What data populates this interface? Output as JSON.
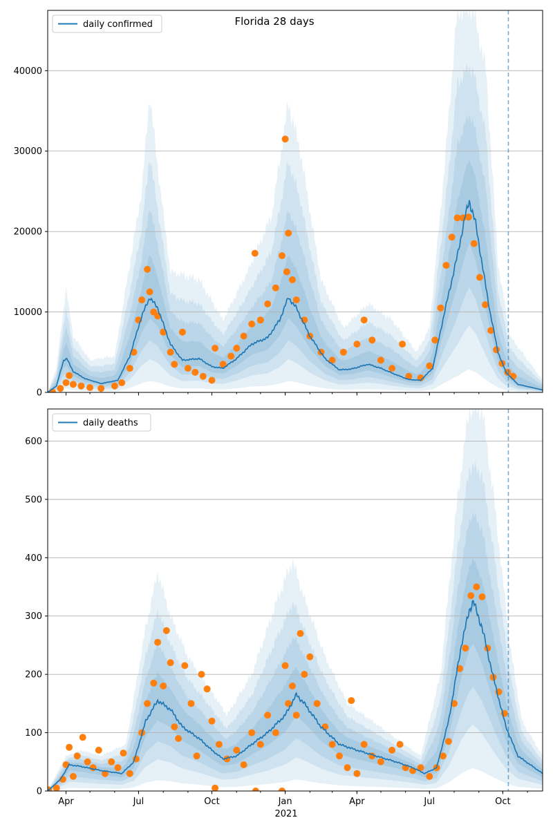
{
  "figure": {
    "title": "Florida 28 days"
  },
  "colors": {
    "model": "#1f77b4",
    "observed": "#ff7f0e",
    "band": "#1f77b4",
    "grid": "#b0b0b0",
    "axis": "#000000"
  },
  "x_axis": {
    "ticks": [
      {
        "date": "2020-04-01",
        "label": "Apr"
      },
      {
        "date": "2020-07-01",
        "label": "Jul"
      },
      {
        "date": "2020-10-01",
        "label": "Oct"
      },
      {
        "date": "2021-01-01",
        "label": "Jan"
      },
      {
        "date": "2021-04-01",
        "label": "Apr"
      },
      {
        "date": "2021-07-01",
        "label": "Jul"
      },
      {
        "date": "2021-10-01",
        "label": "Oct"
      }
    ],
    "year_label": "2021",
    "range": [
      "2020-03-09",
      "2021-11-20"
    ]
  },
  "chart_data": [
    {
      "type": "line",
      "title": "Florida 28 days",
      "legend": {
        "label": "daily confirmed",
        "position": "top-left"
      },
      "ylim": [
        0,
        47500
      ],
      "yticks": [
        0,
        10000,
        20000,
        30000,
        40000
      ],
      "grid": "y",
      "projection_line_date": "2021-10-08",
      "model_points": [
        [
          "2020-03-09",
          0
        ],
        [
          "2020-03-20",
          800
        ],
        [
          "2020-03-29",
          4000
        ],
        [
          "2020-04-02",
          4200
        ],
        [
          "2020-04-10",
          2600
        ],
        [
          "2020-04-25",
          1700
        ],
        [
          "2020-05-15",
          1100
        ],
        [
          "2020-06-05",
          1500
        ],
        [
          "2020-06-20",
          4500
        ],
        [
          "2020-07-05",
          9500
        ],
        [
          "2020-07-15",
          11800
        ],
        [
          "2020-07-25",
          10500
        ],
        [
          "2020-08-10",
          6000
        ],
        [
          "2020-08-25",
          4000
        ],
        [
          "2020-09-15",
          4200
        ],
        [
          "2020-10-01",
          3200
        ],
        [
          "2020-10-15",
          3000
        ],
        [
          "2020-11-01",
          4200
        ],
        [
          "2020-11-20",
          6000
        ],
        [
          "2020-12-10",
          6800
        ],
        [
          "2020-12-25",
          9000
        ],
        [
          "2021-01-05",
          11800
        ],
        [
          "2021-01-15",
          10500
        ],
        [
          "2021-02-01",
          7000
        ],
        [
          "2021-02-20",
          4200
        ],
        [
          "2021-03-10",
          2800
        ],
        [
          "2021-03-25",
          2900
        ],
        [
          "2021-04-15",
          3500
        ],
        [
          "2021-05-01",
          3000
        ],
        [
          "2021-05-20",
          2200
        ],
        [
          "2021-06-05",
          1600
        ],
        [
          "2021-06-20",
          1500
        ],
        [
          "2021-07-05",
          3000
        ],
        [
          "2021-07-20",
          10000
        ],
        [
          "2021-08-05",
          17000
        ],
        [
          "2021-08-15",
          22000
        ],
        [
          "2021-08-20",
          23800
        ],
        [
          "2021-08-28",
          21000
        ],
        [
          "2021-09-05",
          16000
        ],
        [
          "2021-09-15",
          10000
        ],
        [
          "2021-09-25",
          5000
        ],
        [
          "2021-10-05",
          2500
        ],
        [
          "2021-10-20",
          1000
        ],
        [
          "2021-11-20",
          300
        ]
      ],
      "band_points": [
        [
          "2020-03-09",
          0
        ],
        [
          "2020-03-20",
          3000
        ],
        [
          "2020-04-01",
          13000
        ],
        [
          "2020-04-10",
          7000
        ],
        [
          "2020-05-01",
          4000
        ],
        [
          "2020-06-01",
          4500
        ],
        [
          "2020-07-05",
          25000
        ],
        [
          "2020-07-15",
          37000
        ],
        [
          "2020-07-25",
          28000
        ],
        [
          "2020-08-10",
          15000
        ],
        [
          "2020-09-15",
          14000
        ],
        [
          "2020-10-15",
          9000
        ],
        [
          "2020-11-15",
          15000
        ],
        [
          "2020-12-15",
          22000
        ],
        [
          "2021-01-05",
          36000
        ],
        [
          "2021-01-20",
          30000
        ],
        [
          "2021-02-15",
          14000
        ],
        [
          "2021-03-15",
          8000
        ],
        [
          "2021-04-15",
          11000
        ],
        [
          "2021-05-15",
          9000
        ],
        [
          "2021-06-15",
          5000
        ],
        [
          "2021-07-01",
          8000
        ],
        [
          "2021-07-20",
          28000
        ],
        [
          "2021-08-05",
          47500
        ],
        [
          "2021-08-25",
          47500
        ],
        [
          "2021-09-10",
          40000
        ],
        [
          "2021-09-25",
          16000
        ],
        [
          "2021-10-10",
          7000
        ],
        [
          "2021-11-20",
          1500
        ]
      ],
      "observed_points": [
        [
          "2020-03-15",
          50
        ],
        [
          "2020-03-25",
          500
        ],
        [
          "2020-04-01",
          1200
        ],
        [
          "2020-04-05",
          2100
        ],
        [
          "2020-04-10",
          1000
        ],
        [
          "2020-04-20",
          800
        ],
        [
          "2020-05-01",
          600
        ],
        [
          "2020-05-15",
          500
        ],
        [
          "2020-06-01",
          800
        ],
        [
          "2020-06-10",
          1200
        ],
        [
          "2020-06-20",
          3000
        ],
        [
          "2020-06-25",
          5000
        ],
        [
          "2020-07-01",
          9000
        ],
        [
          "2020-07-05",
          11500
        ],
        [
          "2020-07-12",
          15300
        ],
        [
          "2020-07-15",
          12500
        ],
        [
          "2020-07-20",
          10000
        ],
        [
          "2020-07-25",
          9500
        ],
        [
          "2020-08-01",
          7500
        ],
        [
          "2020-08-10",
          5000
        ],
        [
          "2020-08-15",
          3500
        ],
        [
          "2020-08-25",
          7500
        ],
        [
          "2020-09-01",
          3000
        ],
        [
          "2020-09-10",
          2500
        ],
        [
          "2020-09-20",
          2000
        ],
        [
          "2020-10-01",
          1500
        ],
        [
          "2020-10-05",
          5500
        ],
        [
          "2020-10-15",
          3500
        ],
        [
          "2020-10-25",
          4500
        ],
        [
          "2020-11-01",
          5500
        ],
        [
          "2020-11-10",
          7000
        ],
        [
          "2020-11-20",
          8500
        ],
        [
          "2020-11-24",
          17300
        ],
        [
          "2020-12-01",
          9000
        ],
        [
          "2020-12-10",
          11000
        ],
        [
          "2020-12-20",
          13000
        ],
        [
          "2020-12-28",
          17000
        ],
        [
          "2021-01-01",
          31500
        ],
        [
          "2021-01-03",
          15000
        ],
        [
          "2021-01-05",
          19800
        ],
        [
          "2021-01-10",
          14000
        ],
        [
          "2021-01-15",
          11500
        ],
        [
          "2021-01-25",
          9000
        ],
        [
          "2021-02-01",
          7000
        ],
        [
          "2021-02-15",
          5000
        ],
        [
          "2021-03-01",
          4000
        ],
        [
          "2021-03-15",
          5000
        ],
        [
          "2021-04-01",
          6000
        ],
        [
          "2021-04-10",
          9000
        ],
        [
          "2021-04-20",
          6500
        ],
        [
          "2021-05-01",
          4000
        ],
        [
          "2021-05-15",
          3000
        ],
        [
          "2021-05-28",
          6000
        ],
        [
          "2021-06-05",
          2000
        ],
        [
          "2021-06-20",
          1800
        ],
        [
          "2021-07-01",
          3300
        ],
        [
          "2021-07-08",
          6500
        ],
        [
          "2021-07-15",
          10500
        ],
        [
          "2021-07-22",
          15800
        ],
        [
          "2021-07-29",
          19300
        ],
        [
          "2021-08-05",
          21700
        ],
        [
          "2021-08-12",
          21700
        ],
        [
          "2021-08-19",
          21800
        ],
        [
          "2021-08-26",
          18500
        ],
        [
          "2021-09-02",
          14300
        ],
        [
          "2021-09-09",
          10900
        ],
        [
          "2021-09-16",
          7700
        ],
        [
          "2021-09-23",
          5300
        ],
        [
          "2021-09-30",
          3600
        ],
        [
          "2021-10-07",
          2500
        ],
        [
          "2021-10-14",
          2000
        ]
      ]
    },
    {
      "type": "line",
      "legend": {
        "label": "daily deaths",
        "position": "top-left"
      },
      "ylim": [
        0,
        655
      ],
      "yticks": [
        0,
        100,
        200,
        300,
        400,
        500,
        600
      ],
      "grid": "y",
      "projection_line_date": "2021-10-08",
      "model_points": [
        [
          "2020-03-09",
          0
        ],
        [
          "2020-03-25",
          20
        ],
        [
          "2020-04-05",
          45
        ],
        [
          "2020-04-20",
          42
        ],
        [
          "2020-05-15",
          35
        ],
        [
          "2020-06-10",
          30
        ],
        [
          "2020-06-25",
          50
        ],
        [
          "2020-07-10",
          120
        ],
        [
          "2020-07-25",
          155
        ],
        [
          "2020-08-10",
          140
        ],
        [
          "2020-08-25",
          110
        ],
        [
          "2020-09-15",
          90
        ],
        [
          "2020-10-01",
          70
        ],
        [
          "2020-10-15",
          55
        ],
        [
          "2020-11-01",
          60
        ],
        [
          "2020-11-20",
          80
        ],
        [
          "2020-12-10",
          100
        ],
        [
          "2021-01-01",
          130
        ],
        [
          "2021-01-15",
          165
        ],
        [
          "2021-01-25",
          150
        ],
        [
          "2021-02-15",
          110
        ],
        [
          "2021-03-10",
          80
        ],
        [
          "2021-04-01",
          70
        ],
        [
          "2021-04-25",
          60
        ],
        [
          "2021-05-20",
          50
        ],
        [
          "2021-06-10",
          40
        ],
        [
          "2021-06-25",
          30
        ],
        [
          "2021-07-10",
          40
        ],
        [
          "2021-07-25",
          120
        ],
        [
          "2021-08-10",
          250
        ],
        [
          "2021-08-20",
          310
        ],
        [
          "2021-08-25",
          325
        ],
        [
          "2021-09-05",
          280
        ],
        [
          "2021-09-20",
          190
        ],
        [
          "2021-10-05",
          110
        ],
        [
          "2021-10-20",
          60
        ],
        [
          "2021-11-20",
          30
        ]
      ],
      "band_points": [
        [
          "2020-03-09",
          0
        ],
        [
          "2020-04-01",
          60
        ],
        [
          "2020-04-20",
          70
        ],
        [
          "2020-05-15",
          60
        ],
        [
          "2020-06-15",
          80
        ],
        [
          "2020-07-10",
          280
        ],
        [
          "2020-07-25",
          375
        ],
        [
          "2020-08-10",
          300
        ],
        [
          "2020-09-01",
          230
        ],
        [
          "2020-10-01",
          170
        ],
        [
          "2020-10-20",
          130
        ],
        [
          "2020-11-20",
          200
        ],
        [
          "2020-12-20",
          320
        ],
        [
          "2021-01-10",
          395
        ],
        [
          "2021-01-25",
          330
        ],
        [
          "2021-02-20",
          230
        ],
        [
          "2021-03-20",
          150
        ],
        [
          "2021-04-20",
          120
        ],
        [
          "2021-05-20",
          90
        ],
        [
          "2021-06-20",
          60
        ],
        [
          "2021-07-15",
          200
        ],
        [
          "2021-08-05",
          500
        ],
        [
          "2021-08-20",
          655
        ],
        [
          "2021-09-05",
          655
        ],
        [
          "2021-09-20",
          500
        ],
        [
          "2021-10-10",
          250
        ],
        [
          "2021-10-25",
          120
        ],
        [
          "2021-11-20",
          60
        ]
      ],
      "observed_points": [
        [
          "2020-03-10",
          2
        ],
        [
          "2020-03-20",
          5
        ],
        [
          "2020-03-28",
          20
        ],
        [
          "2020-04-01",
          45
        ],
        [
          "2020-04-05",
          75
        ],
        [
          "2020-04-10",
          25
        ],
        [
          "2020-04-15",
          60
        ],
        [
          "2020-04-22",
          92
        ],
        [
          "2020-04-28",
          50
        ],
        [
          "2020-05-05",
          40
        ],
        [
          "2020-05-12",
          70
        ],
        [
          "2020-05-20",
          30
        ],
        [
          "2020-05-28",
          50
        ],
        [
          "2020-06-05",
          40
        ],
        [
          "2020-06-12",
          65
        ],
        [
          "2020-06-20",
          30
        ],
        [
          "2020-06-28",
          55
        ],
        [
          "2020-07-05",
          100
        ],
        [
          "2020-07-12",
          150
        ],
        [
          "2020-07-20",
          185
        ],
        [
          "2020-07-25",
          255
        ],
        [
          "2020-08-01",
          180
        ],
        [
          "2020-08-05",
          275
        ],
        [
          "2020-08-10",
          220
        ],
        [
          "2020-08-15",
          110
        ],
        [
          "2020-08-20",
          90
        ],
        [
          "2020-08-28",
          215
        ],
        [
          "2020-09-05",
          150
        ],
        [
          "2020-09-12",
          60
        ],
        [
          "2020-09-18",
          200
        ],
        [
          "2020-09-25",
          175
        ],
        [
          "2020-10-01",
          120
        ],
        [
          "2020-10-05",
          5
        ],
        [
          "2020-10-10",
          80
        ],
        [
          "2020-10-20",
          55
        ],
        [
          "2020-11-01",
          70
        ],
        [
          "2020-11-10",
          45
        ],
        [
          "2020-11-20",
          100
        ],
        [
          "2020-11-25",
          0
        ],
        [
          "2020-12-01",
          80
        ],
        [
          "2020-12-10",
          130
        ],
        [
          "2020-12-20",
          100
        ],
        [
          "2020-12-28",
          0
        ],
        [
          "2021-01-01",
          215
        ],
        [
          "2021-01-05",
          150
        ],
        [
          "2021-01-10",
          180
        ],
        [
          "2021-01-15",
          130
        ],
        [
          "2021-01-20",
          270
        ],
        [
          "2021-01-25",
          200
        ],
        [
          "2021-02-01",
          230
        ],
        [
          "2021-02-10",
          150
        ],
        [
          "2021-02-20",
          110
        ],
        [
          "2021-03-01",
          80
        ],
        [
          "2021-03-10",
          60
        ],
        [
          "2021-03-20",
          40
        ],
        [
          "2021-03-25",
          155
        ],
        [
          "2021-04-01",
          30
        ],
        [
          "2021-04-10",
          80
        ],
        [
          "2021-04-20",
          60
        ],
        [
          "2021-05-01",
          50
        ],
        [
          "2021-05-15",
          70
        ],
        [
          "2021-05-25",
          80
        ],
        [
          "2021-06-01",
          40
        ],
        [
          "2021-06-10",
          35
        ],
        [
          "2021-06-20",
          40
        ],
        [
          "2021-07-01",
          25
        ],
        [
          "2021-07-10",
          40
        ],
        [
          "2021-07-18",
          60
        ],
        [
          "2021-07-25",
          85
        ],
        [
          "2021-08-01",
          150
        ],
        [
          "2021-08-08",
          210
        ],
        [
          "2021-08-15",
          245
        ],
        [
          "2021-08-22",
          335
        ],
        [
          "2021-08-29",
          350
        ],
        [
          "2021-09-05",
          333
        ],
        [
          "2021-09-12",
          245
        ],
        [
          "2021-09-19",
          195
        ],
        [
          "2021-09-26",
          170
        ],
        [
          "2021-10-03",
          133
        ]
      ]
    }
  ]
}
